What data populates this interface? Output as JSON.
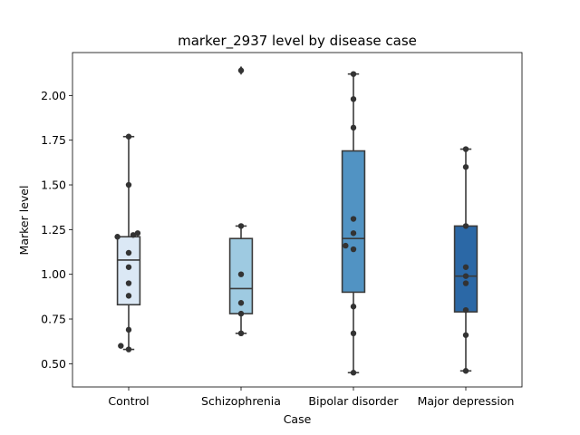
{
  "chart_data": {
    "type": "box",
    "title": "marker_2937 level by disease case",
    "xlabel": "Case",
    "ylabel": "Marker level",
    "ylim": [
      0.37,
      2.24
    ],
    "yticks": [
      0.5,
      0.75,
      1.0,
      1.25,
      1.5,
      1.75,
      2.0
    ],
    "ytick_labels": [
      "0.50",
      "0.75",
      "1.00",
      "1.25",
      "1.50",
      "1.75",
      "2.00"
    ],
    "grid": false,
    "categories": [
      "Control",
      "Schizophrenia",
      "Bipolar disorder",
      "Major depression"
    ],
    "colors": [
      "#dbe8f5",
      "#9ecae1",
      "#5193c3",
      "#2b68a6"
    ],
    "boxes": [
      {
        "category": "Control",
        "whisker_low": 0.58,
        "q1": 0.83,
        "median": 1.08,
        "q3": 1.21,
        "whisker_high": 1.77,
        "outliers": []
      },
      {
        "category": "Schizophrenia",
        "whisker_low": 0.67,
        "q1": 0.78,
        "median": 0.92,
        "q3": 1.2,
        "whisker_high": 1.27,
        "outliers": [
          2.14
        ]
      },
      {
        "category": "Bipolar disorder",
        "whisker_low": 0.45,
        "q1": 0.9,
        "median": 1.2,
        "q3": 1.69,
        "whisker_high": 2.12,
        "outliers": []
      },
      {
        "category": "Major depression",
        "whisker_low": 0.46,
        "q1": 0.79,
        "median": 0.99,
        "q3": 1.27,
        "whisker_high": 1.7,
        "outliers": []
      }
    ],
    "points": [
      {
        "category": "Control",
        "values": [
          1.77,
          1.5,
          1.21,
          1.22,
          1.23,
          1.12,
          1.04,
          0.95,
          0.88,
          0.69,
          0.6,
          0.58
        ],
        "offsets": [
          0,
          0,
          -0.1,
          0.04,
          0.08,
          0,
          0,
          0,
          0,
          0,
          -0.07,
          0
        ]
      },
      {
        "category": "Schizophrenia",
        "values": [
          2.14,
          1.27,
          1.0,
          0.84,
          0.78,
          0.67
        ],
        "offsets": [
          0,
          0,
          0,
          0,
          0,
          0
        ]
      },
      {
        "category": "Bipolar disorder",
        "values": [
          2.12,
          1.98,
          1.82,
          1.31,
          1.23,
          1.16,
          1.14,
          0.82,
          0.67,
          0.45
        ],
        "offsets": [
          0,
          0,
          0,
          0,
          0,
          -0.07,
          0,
          0,
          0,
          0
        ]
      },
      {
        "category": "Major depression",
        "values": [
          1.7,
          1.6,
          1.27,
          1.04,
          0.99,
          0.95,
          0.8,
          0.66,
          0.46
        ],
        "offsets": [
          0,
          0,
          0,
          0,
          0,
          0,
          0,
          0,
          0
        ]
      }
    ]
  }
}
